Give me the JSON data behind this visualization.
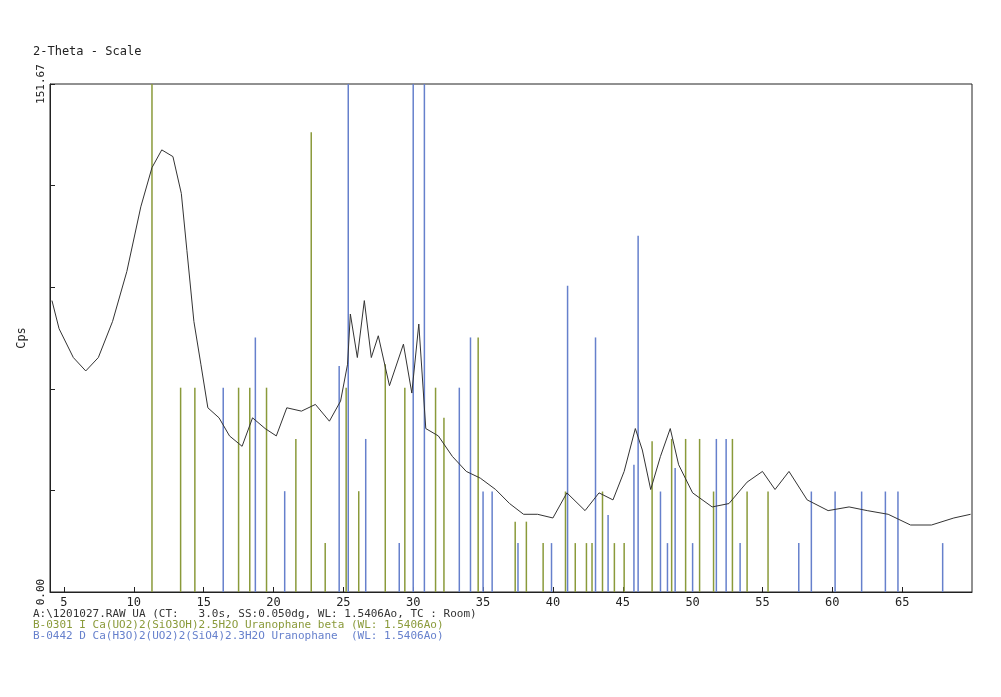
{
  "chart_data": {
    "type": "line",
    "title": "2-Theta - Scale",
    "ylabel": "Cps",
    "xlim": [
      4,
      70
    ],
    "xticks": [
      5,
      10,
      15,
      20,
      25,
      30,
      35,
      40,
      45,
      50,
      55,
      60,
      65
    ],
    "ylim": [
      0,
      151.67
    ],
    "yticks": [
      {
        "value": 0,
        "label": "0.00"
      },
      {
        "value": 30.33,
        "label": null
      },
      {
        "value": 60.67,
        "label": null
      },
      {
        "value": 91,
        "label": null
      },
      {
        "value": 121.34,
        "label": null
      },
      {
        "value": 151.67,
        "label": "151.67"
      }
    ],
    "legend": "bottom",
    "marker": "none",
    "grid": false,
    "series": [
      {
        "name": "A:\\1201027.RAW UA (CT:   3.0s, SS:0.050dg, WL: 1.5406Ao, TC : Room)",
        "color": "#333333",
        "x": [
          4.14,
          4.65,
          5.67,
          6.56,
          7.46,
          8.48,
          9.5,
          10.5,
          11.3,
          12.0,
          12.8,
          13.4,
          13.8,
          14.3,
          14.8,
          15.3,
          16.1,
          16.85,
          17.75,
          18.5,
          19.4,
          20.2,
          20.95,
          22.0,
          23.0,
          24.0,
          24.8,
          25.3,
          25.5,
          26.0,
          26.5,
          27.0,
          27.5,
          28.3,
          29.3,
          29.9,
          30.4,
          30.9,
          31.8,
          32.8,
          33.8,
          34.8,
          35.9,
          36.9,
          37.9,
          38.9,
          40.0,
          41.0,
          42.3,
          43.3,
          44.3,
          45.1,
          45.9,
          46.4,
          47.0,
          47.7,
          48.4,
          49.0,
          50.0,
          51.4,
          52.6,
          53.9,
          55.0,
          55.9,
          56.9,
          58.2,
          59.7,
          61.2,
          62.5,
          64.0,
          65.6,
          67.1,
          68.7,
          69.9
        ],
        "values": [
          87,
          78.6,
          70,
          66,
          70,
          80.8,
          95.7,
          115,
          126.7,
          132,
          130,
          119,
          102,
          80.8,
          68,
          55,
          52,
          46.6,
          43.5,
          52,
          48.8,
          46.6,
          55,
          54,
          56,
          51,
          57,
          68,
          83,
          70,
          87,
          70,
          76.5,
          61.6,
          74,
          59.4,
          80,
          48.8,
          46.6,
          40.5,
          36,
          34,
          30.6,
          26.4,
          23.2,
          23.2,
          22.1,
          29.6,
          24.3,
          29.6,
          27.5,
          36,
          48.8,
          42.4,
          30.6,
          40.5,
          48.8,
          38,
          29.6,
          25.4,
          26.4,
          32.8,
          36,
          30.6,
          36,
          27.5,
          24.3,
          25.4,
          24.3,
          23.2,
          20,
          20,
          22.1,
          23.2
        ]
      },
      {
        "name": "B-0301 I Ca(UO2)2(SiO3OH)2.5H2O Uranophane beta (WL: 1.5406Ao)",
        "type": "bar",
        "color": "#8a9a3a",
        "x": [
          11.3,
          13.35,
          14.37,
          17.5,
          18.3,
          19.5,
          21.6,
          22.7,
          23.7,
          25.2,
          26.1,
          28.0,
          29.4,
          31.6,
          32.2,
          34.65,
          37.3,
          38.1,
          39.3,
          40.9,
          41.6,
          42.4,
          42.8,
          43.55,
          44.4,
          45.1,
          47.1,
          48.5,
          49.5,
          50.5,
          51.5,
          52.85,
          53.9,
          55.4
        ],
        "values": [
          151.67,
          61,
          61,
          61,
          61,
          61,
          45.7,
          137.3,
          14.6,
          61,
          30.1,
          68,
          61,
          61,
          52,
          76,
          21,
          21,
          14.6,
          30,
          14.6,
          14.6,
          14.6,
          30,
          14.6,
          14.6,
          45,
          45.7,
          45.7,
          45.7,
          30,
          45.7,
          30,
          30
        ]
      },
      {
        "name": "B-0442 D Ca(H3O)2(UO2)2(SiO4)2.3H2O Uranophane  (WL: 1.5406Ao)",
        "type": "bar",
        "color": "#6680cc",
        "x": [
          16.4,
          18.7,
          20.8,
          24.7,
          25.35,
          26.6,
          29.0,
          30.0,
          30.8,
          33.3,
          34.1,
          35.0,
          35.65,
          37.5,
          39.9,
          41.05,
          43.05,
          43.95,
          45.8,
          46.1,
          47.7,
          48.2,
          48.75,
          50.0,
          51.7,
          52.4,
          53.4,
          57.6,
          58.5,
          60.2,
          62.1,
          63.8,
          64.7,
          67.9
        ],
        "values": [
          61,
          76,
          30.1,
          67.5,
          151.67,
          45.7,
          14.6,
          151.67,
          151.67,
          61,
          76,
          30,
          30,
          14.6,
          14.6,
          91.4,
          76,
          23,
          38,
          106.4,
          30,
          14.6,
          37,
          14.6,
          45.7,
          45.7,
          14.6,
          14.6,
          30,
          30,
          30,
          30,
          30,
          14.6
        ]
      }
    ]
  }
}
